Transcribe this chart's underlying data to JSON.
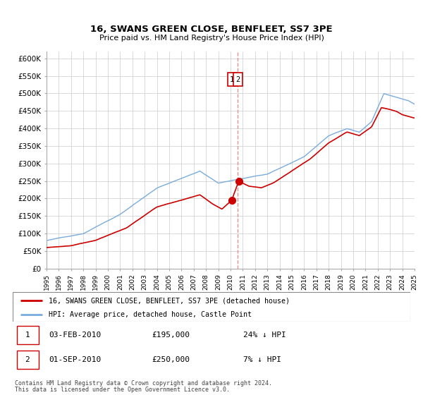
{
  "title": "16, SWANS GREEN CLOSE, BENFLEET, SS7 3PE",
  "subtitle": "Price paid vs. HM Land Registry's House Price Index (HPI)",
  "legend_line1": "16, SWANS GREEN CLOSE, BENFLEET, SS7 3PE (detached house)",
  "legend_line2": "HPI: Average price, detached house, Castle Point",
  "annotation1_date": "03-FEB-2010",
  "annotation1_price": "£195,000",
  "annotation1_hpi": "24% ↓ HPI",
  "annotation1_year": 2010.09,
  "annotation1_value": 195000,
  "annotation2_date": "01-SEP-2010",
  "annotation2_price": "£250,000",
  "annotation2_hpi": "7% ↓ HPI",
  "annotation2_year": 2010.67,
  "annotation2_value": 250000,
  "red_line_color": "#cc0000",
  "blue_line_color": "#7aacdc",
  "dashed_line_color": "#dd8888",
  "grid_color": "#cccccc",
  "bg_color": "#ffffff",
  "ylim": [
    0,
    620000
  ],
  "yticks": [
    0,
    50000,
    100000,
    150000,
    200000,
    250000,
    300000,
    350000,
    400000,
    450000,
    500000,
    550000,
    600000
  ],
  "footer": "Contains HM Land Registry data © Crown copyright and database right 2024.\nThis data is licensed under the Open Government Licence v3.0.",
  "vline_x": 2010.55
}
